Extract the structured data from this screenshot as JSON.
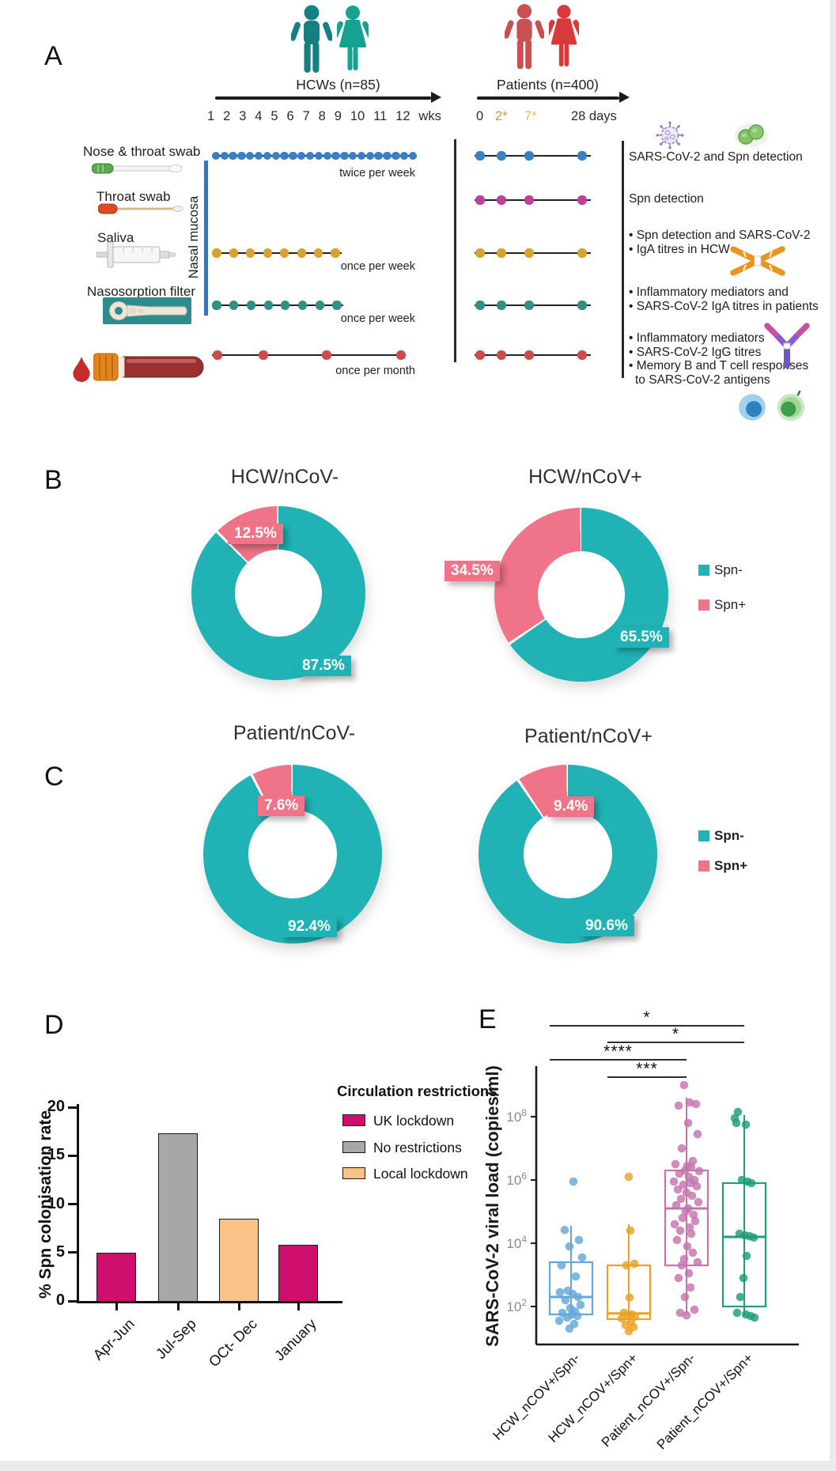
{
  "panels": {
    "A": "A",
    "B": "B",
    "C": "C",
    "D": "D",
    "E": "E"
  },
  "panelA": {
    "hcw_title": "HCWs (n=85)",
    "hcw_weeks": [
      "1",
      "2",
      "3",
      "4",
      "5",
      "6",
      "7",
      "8",
      "9",
      "10",
      "11",
      "12",
      "wks"
    ],
    "patients_title": "Patients (n=400)",
    "patient_ticks": [
      {
        "label": "0",
        "color": "#2b2b2b"
      },
      {
        "label": "2*",
        "color": "#D09A33"
      },
      {
        "label": "7*",
        "color": "#DFC257"
      },
      {
        "label": "28 days",
        "color": "#2b2b2b"
      }
    ],
    "nasal_mucosa_label": "Nasal mucosa",
    "sample_labels": [
      "Nose & throat swab",
      "Throat swab",
      "Saliva",
      "Nasosorption filter"
    ],
    "rows": [
      {
        "color": "#3A7FC2",
        "hcw_dots": 24,
        "freq": "twice per week",
        "annotation_lines": [
          "SARS-CoV-2  and Spn detection"
        ]
      },
      {
        "color": "#BE3F96",
        "hcw_dots": 0,
        "freq": "",
        "annotation_lines": [
          "Spn detection"
        ]
      },
      {
        "color": "#D6A32F",
        "hcw_dots": 8,
        "freq": "once per week",
        "annotation_lines": [
          "• Spn detection and SARS-CoV-2",
          "• IgA titres in HCW"
        ]
      },
      {
        "color": "#2E9184",
        "hcw_dots": 8,
        "freq": "once per week",
        "annotation_lines": [
          "• Inflammatory mediators and",
          "• SARS-CoV-2 IgA titres in patients"
        ]
      },
      {
        "color": "#CC4C4C",
        "hcw_dots": 4,
        "freq": "once per month",
        "annotation_lines": [
          "• Inflammatory mediators",
          "• SARS-CoV-2 IgG titres",
          "• Memory B and T cell responses",
          "to SARS-CoV-2 antigens"
        ]
      }
    ]
  },
  "spn_legend": {
    "neg": "Spn-",
    "pos": "Spn+",
    "neg_color": "#20B2B4",
    "pos_color": "#EF7489"
  },
  "chart_data": [
    {
      "type": "pie",
      "panel": "B",
      "title": "HCW/nCoV-",
      "labels": [
        "Spn-",
        "Spn+"
      ],
      "values": [
        87.5,
        12.5
      ],
      "colors": [
        "#20B2B4",
        "#EF7489"
      ]
    },
    {
      "type": "pie",
      "panel": "B",
      "title": "HCW/nCoV+",
      "labels": [
        "Spn-",
        "Spn+"
      ],
      "values": [
        65.5,
        34.5
      ],
      "colors": [
        "#20B2B4",
        "#EF7489"
      ]
    },
    {
      "type": "pie",
      "panel": "C",
      "title": "Patient/nCoV-",
      "labels": [
        "Spn-",
        "Spn+"
      ],
      "values": [
        92.4,
        7.6
      ],
      "colors": [
        "#20B2B4",
        "#EF7489"
      ]
    },
    {
      "type": "pie",
      "panel": "C",
      "title": "Patient/nCoV+",
      "labels": [
        "Spn-",
        "Spn+"
      ],
      "values": [
        90.6,
        9.4
      ],
      "colors": [
        "#20B2B4",
        "#EF7489"
      ]
    },
    {
      "type": "bar",
      "panel": "D",
      "ylabel": "% Spn colonisation rate",
      "ylim": [
        0,
        20
      ],
      "yticks": [
        0,
        5,
        10,
        15,
        20
      ],
      "categories": [
        "Apr-Jun",
        "Jul-Sep",
        "OCt- Dec",
        "January"
      ],
      "values": [
        5.0,
        17.3,
        8.5,
        5.8
      ],
      "bar_colors": [
        "#CE0F6E",
        "#A7A7A7",
        "#FAC189",
        "#CE0F6E"
      ],
      "legend_title": "Circulation restrictions",
      "legend": [
        {
          "label": "UK lockdown",
          "color": "#CE0F6E"
        },
        {
          "label": "No restrictions",
          "color": "#A7A7A7"
        },
        {
          "label": "Local lockdown",
          "color": "#FAC189"
        }
      ]
    },
    {
      "type": "box",
      "panel": "E",
      "ylabel": "SARS-CoV-2 viral load (copies/ml)",
      "yscale": "log10",
      "ytick_exponents": [
        2,
        4,
        6,
        8
      ],
      "groups": [
        {
          "name": "HCW_nCOV+/Spn-",
          "color": "#61A8DC",
          "box": {
            "lo": 1.6,
            "q1": 1.75,
            "med": 2.3,
            "q3": 3.4,
            "hi": 4.55
          },
          "points": [
            [
              3,
              5.95
            ],
            [
              -8,
              4.42
            ],
            [
              10,
              4.1
            ],
            [
              -2,
              3.9
            ],
            [
              14,
              3.55
            ],
            [
              -12,
              3.3
            ],
            [
              6,
              2.95
            ],
            [
              -4,
              2.5
            ],
            [
              -14,
              2.45
            ],
            [
              2,
              2.4
            ],
            [
              9,
              2.3
            ],
            [
              -7,
              2.2
            ],
            [
              12,
              2.05
            ],
            [
              -1,
              1.95
            ],
            [
              5,
              1.85
            ],
            [
              -11,
              1.8
            ],
            [
              1,
              1.75
            ],
            [
              8,
              1.7
            ],
            [
              -5,
              1.65
            ],
            [
              -15,
              1.55
            ],
            [
              4,
              1.45
            ],
            [
              -2,
              1.3
            ]
          ]
        },
        {
          "name": "HCW_nCOV+/Spn+",
          "color": "#E9A223",
          "box": {
            "lo": 1.5,
            "q1": 1.6,
            "med": 1.78,
            "q3": 3.3,
            "hi": 4.6
          },
          "points": [
            [
              0,
              6.1
            ],
            [
              2,
              4.4
            ],
            [
              7,
              3.35
            ],
            [
              -3,
              3.3
            ],
            [
              1,
              2.28
            ],
            [
              -6,
              1.8
            ],
            [
              4,
              1.75
            ],
            [
              -1,
              1.72
            ],
            [
              8,
              1.68
            ],
            [
              -9,
              1.62
            ],
            [
              3,
              1.5
            ],
            [
              -4,
              1.42
            ],
            [
              6,
              1.35
            ],
            [
              0,
              1.22
            ]
          ]
        },
        {
          "name": "Patient_nCOV+/Spn-",
          "color": "#C573AD",
          "box": {
            "lo": 1.75,
            "q1": 3.3,
            "med": 5.1,
            "q3": 6.3,
            "hi": 8.6
          },
          "points": [
            [
              -3,
              9.0
            ],
            [
              4,
              8.45
            ],
            [
              12,
              8.4
            ],
            [
              -10,
              8.35
            ],
            [
              2,
              7.8
            ],
            [
              14,
              7.45
            ],
            [
              -6,
              7.0
            ],
            [
              8,
              6.6
            ],
            [
              -14,
              6.5
            ],
            [
              1,
              6.45
            ],
            [
              6,
              6.4
            ],
            [
              -2,
              6.3
            ],
            [
              16,
              6.28
            ],
            [
              -9,
              6.2
            ],
            [
              3,
              6.1
            ],
            [
              10,
              6.0
            ],
            [
              -16,
              5.95
            ],
            [
              5,
              5.9
            ],
            [
              -4,
              5.85
            ],
            [
              13,
              5.8
            ],
            [
              -11,
              5.7
            ],
            [
              0,
              5.6
            ],
            [
              7,
              5.5
            ],
            [
              -7,
              5.4
            ],
            [
              15,
              5.3
            ],
            [
              -13,
              5.2
            ],
            [
              2,
              5.1
            ],
            [
              -1,
              5.0
            ],
            [
              9,
              4.9
            ],
            [
              -5,
              4.8
            ],
            [
              11,
              4.7
            ],
            [
              -15,
              4.6
            ],
            [
              4,
              4.5
            ],
            [
              -8,
              4.4
            ],
            [
              6,
              4.3
            ],
            [
              -12,
              4.1
            ],
            [
              1,
              3.9
            ],
            [
              8,
              3.7
            ],
            [
              -3,
              3.5
            ],
            [
              14,
              3.4
            ],
            [
              -6,
              3.3
            ],
            [
              3,
              3.05
            ],
            [
              -10,
              2.9
            ],
            [
              5,
              2.6
            ],
            [
              -2,
              2.3
            ],
            [
              10,
              1.9
            ],
            [
              -8,
              1.8
            ],
            [
              0,
              1.72
            ]
          ]
        },
        {
          "name": "Patient_nCOV+/Spn+",
          "color": "#1F9E78",
          "box": {
            "lo": 1.7,
            "q1": 2.0,
            "med": 4.2,
            "q3": 5.9,
            "hi": 8.05
          },
          "points": [
            [
              -8,
              8.15
            ],
            [
              -12,
              7.95
            ],
            [
              -10,
              7.8
            ],
            [
              2,
              7.75
            ],
            [
              -3,
              6.0
            ],
            [
              4,
              5.95
            ],
            [
              9,
              5.9
            ],
            [
              -6,
              4.3
            ],
            [
              1,
              4.25
            ],
            [
              7,
              4.22
            ],
            [
              12,
              4.18
            ],
            [
              3,
              3.6
            ],
            [
              -1,
              2.9
            ],
            [
              -5,
              2.3
            ],
            [
              -9,
              1.8
            ],
            [
              2,
              1.75
            ],
            [
              8,
              1.7
            ],
            [
              13,
              1.65
            ]
          ]
        },
        {
          "name": "",
          "color": ""
        }
      ],
      "significance": [
        {
          "groups": [
            0,
            3
          ],
          "label": "*"
        },
        {
          "groups": [
            1,
            3
          ],
          "label": "*"
        },
        {
          "groups": [
            0,
            2
          ],
          "label": "****"
        },
        {
          "groups": [
            1,
            2
          ],
          "label": "***"
        }
      ]
    }
  ]
}
